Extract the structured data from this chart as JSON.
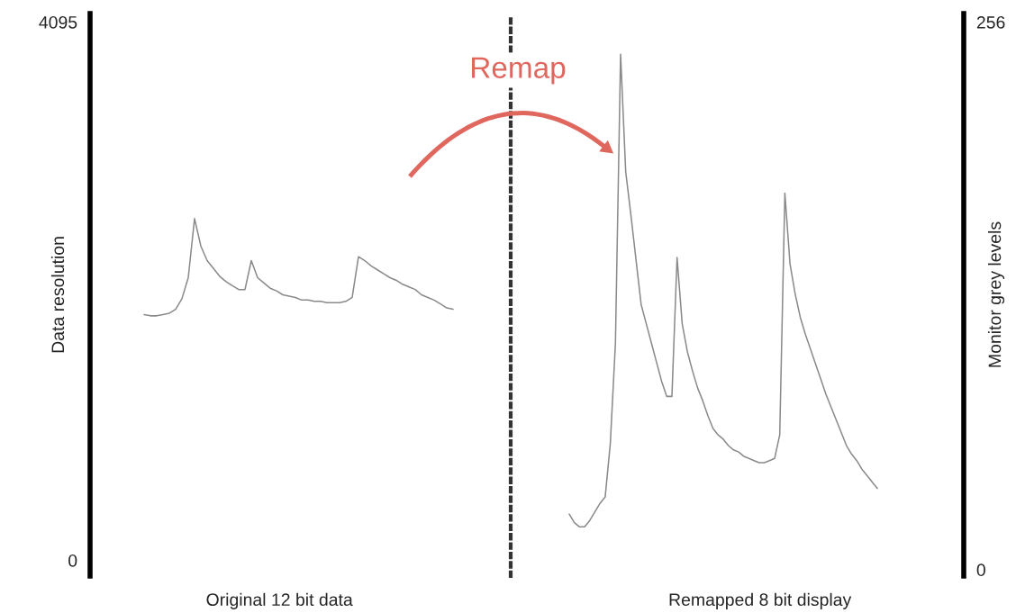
{
  "chart_data": [
    {
      "type": "line",
      "xlabel": "Original 12 bit data",
      "ylabel": "Data resolution",
      "ylim": [
        -120,
        4160
      ],
      "yticks": [
        0,
        4095
      ],
      "tick_labels": "y",
      "annotations": [
        "Remap"
      ],
      "categories": [
        null,
        null,
        null,
        null,
        null,
        null,
        null,
        null,
        null,
        null,
        null,
        null,
        null,
        null,
        null,
        null,
        null,
        null,
        null,
        null,
        null,
        null,
        null,
        null,
        null,
        null,
        null,
        null,
        null,
        null,
        null,
        null,
        null,
        null,
        null,
        null,
        null,
        null,
        null,
        null,
        null,
        null,
        null,
        null,
        null,
        null,
        null,
        null,
        null,
        null
      ],
      "series": [
        {
          "color": "#8a8a8a",
          "values": [
            1870,
            1860,
            1860,
            1870,
            1880,
            1910,
            1990,
            2150,
            2600,
            2390,
            2280,
            2220,
            2160,
            2120,
            2090,
            2060,
            2060,
            2280,
            2150,
            2110,
            2070,
            2050,
            2020,
            2010,
            2000,
            1980,
            1980,
            1970,
            1970,
            1960,
            1960,
            1960,
            1970,
            2000,
            2310,
            2280,
            2240,
            2210,
            2180,
            2150,
            2130,
            2100,
            2080,
            2060,
            2020,
            2000,
            1980,
            1950,
            1920,
            1910
          ]
        }
      ]
    },
    {
      "type": "line",
      "xlabel": "Remapped 8 bit display",
      "ylabel": "Monitor grey levels",
      "ylim": [
        -3,
        260
      ],
      "yticks": [
        0,
        256
      ],
      "tick_labels": "y",
      "categories": [
        null,
        null,
        null,
        null,
        null,
        null,
        null,
        null,
        null,
        null,
        null,
        null,
        null,
        null,
        null,
        null,
        null,
        null,
        null,
        null,
        null,
        null,
        null,
        null,
        null,
        null,
        null,
        null,
        null,
        null,
        null,
        null,
        null,
        null,
        null,
        null,
        null,
        null,
        null,
        null,
        null,
        null,
        null,
        null,
        null,
        null,
        null,
        null,
        null,
        null,
        null,
        null,
        null,
        null,
        null,
        null,
        null,
        null,
        null,
        null,
        null
      ],
      "series": [
        {
          "color": "#8a8a8a",
          "values": [
            26,
            22,
            20,
            20,
            23,
            27,
            31,
            34,
            59,
            106,
            241,
            186,
            166,
            145,
            124,
            115,
            106,
            97,
            88,
            81,
            81,
            146,
            115,
            102,
            93,
            85,
            79,
            72,
            66,
            63,
            61,
            58,
            56,
            55,
            53,
            52,
            51,
            50,
            50,
            51,
            52,
            63,
            176,
            143,
            129,
            118,
            110,
            103,
            96,
            89,
            82,
            76,
            70,
            64,
            58,
            54,
            51,
            47,
            44,
            41,
            38
          ]
        }
      ]
    }
  ]
}
